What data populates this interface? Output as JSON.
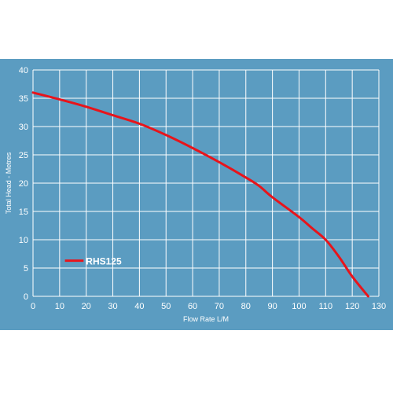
{
  "chart_data": {
    "type": "line",
    "title": "",
    "xlabel": "Flow Rate L/M",
    "ylabel": "Total Head - Metres",
    "xlim": [
      0,
      130
    ],
    "ylim": [
      0,
      40
    ],
    "x_ticks": [
      0,
      10,
      20,
      30,
      40,
      50,
      60,
      70,
      80,
      90,
      100,
      110,
      120,
      130
    ],
    "y_ticks": [
      0,
      5,
      10,
      15,
      20,
      25,
      30,
      35,
      40
    ],
    "grid": true,
    "legend_position": "lower-left",
    "series": [
      {
        "name": "RHS125",
        "color": "#e8141b",
        "x": [
          0,
          10,
          20,
          30,
          40,
          50,
          60,
          70,
          80,
          85,
          90,
          100,
          105,
          110,
          115,
          120,
          126
        ],
        "y": [
          36,
          34.8,
          33.5,
          32,
          30.5,
          28.5,
          26.2,
          23.7,
          21,
          19.5,
          17.5,
          14,
          12,
          10,
          7,
          3.5,
          0
        ]
      }
    ]
  }
}
